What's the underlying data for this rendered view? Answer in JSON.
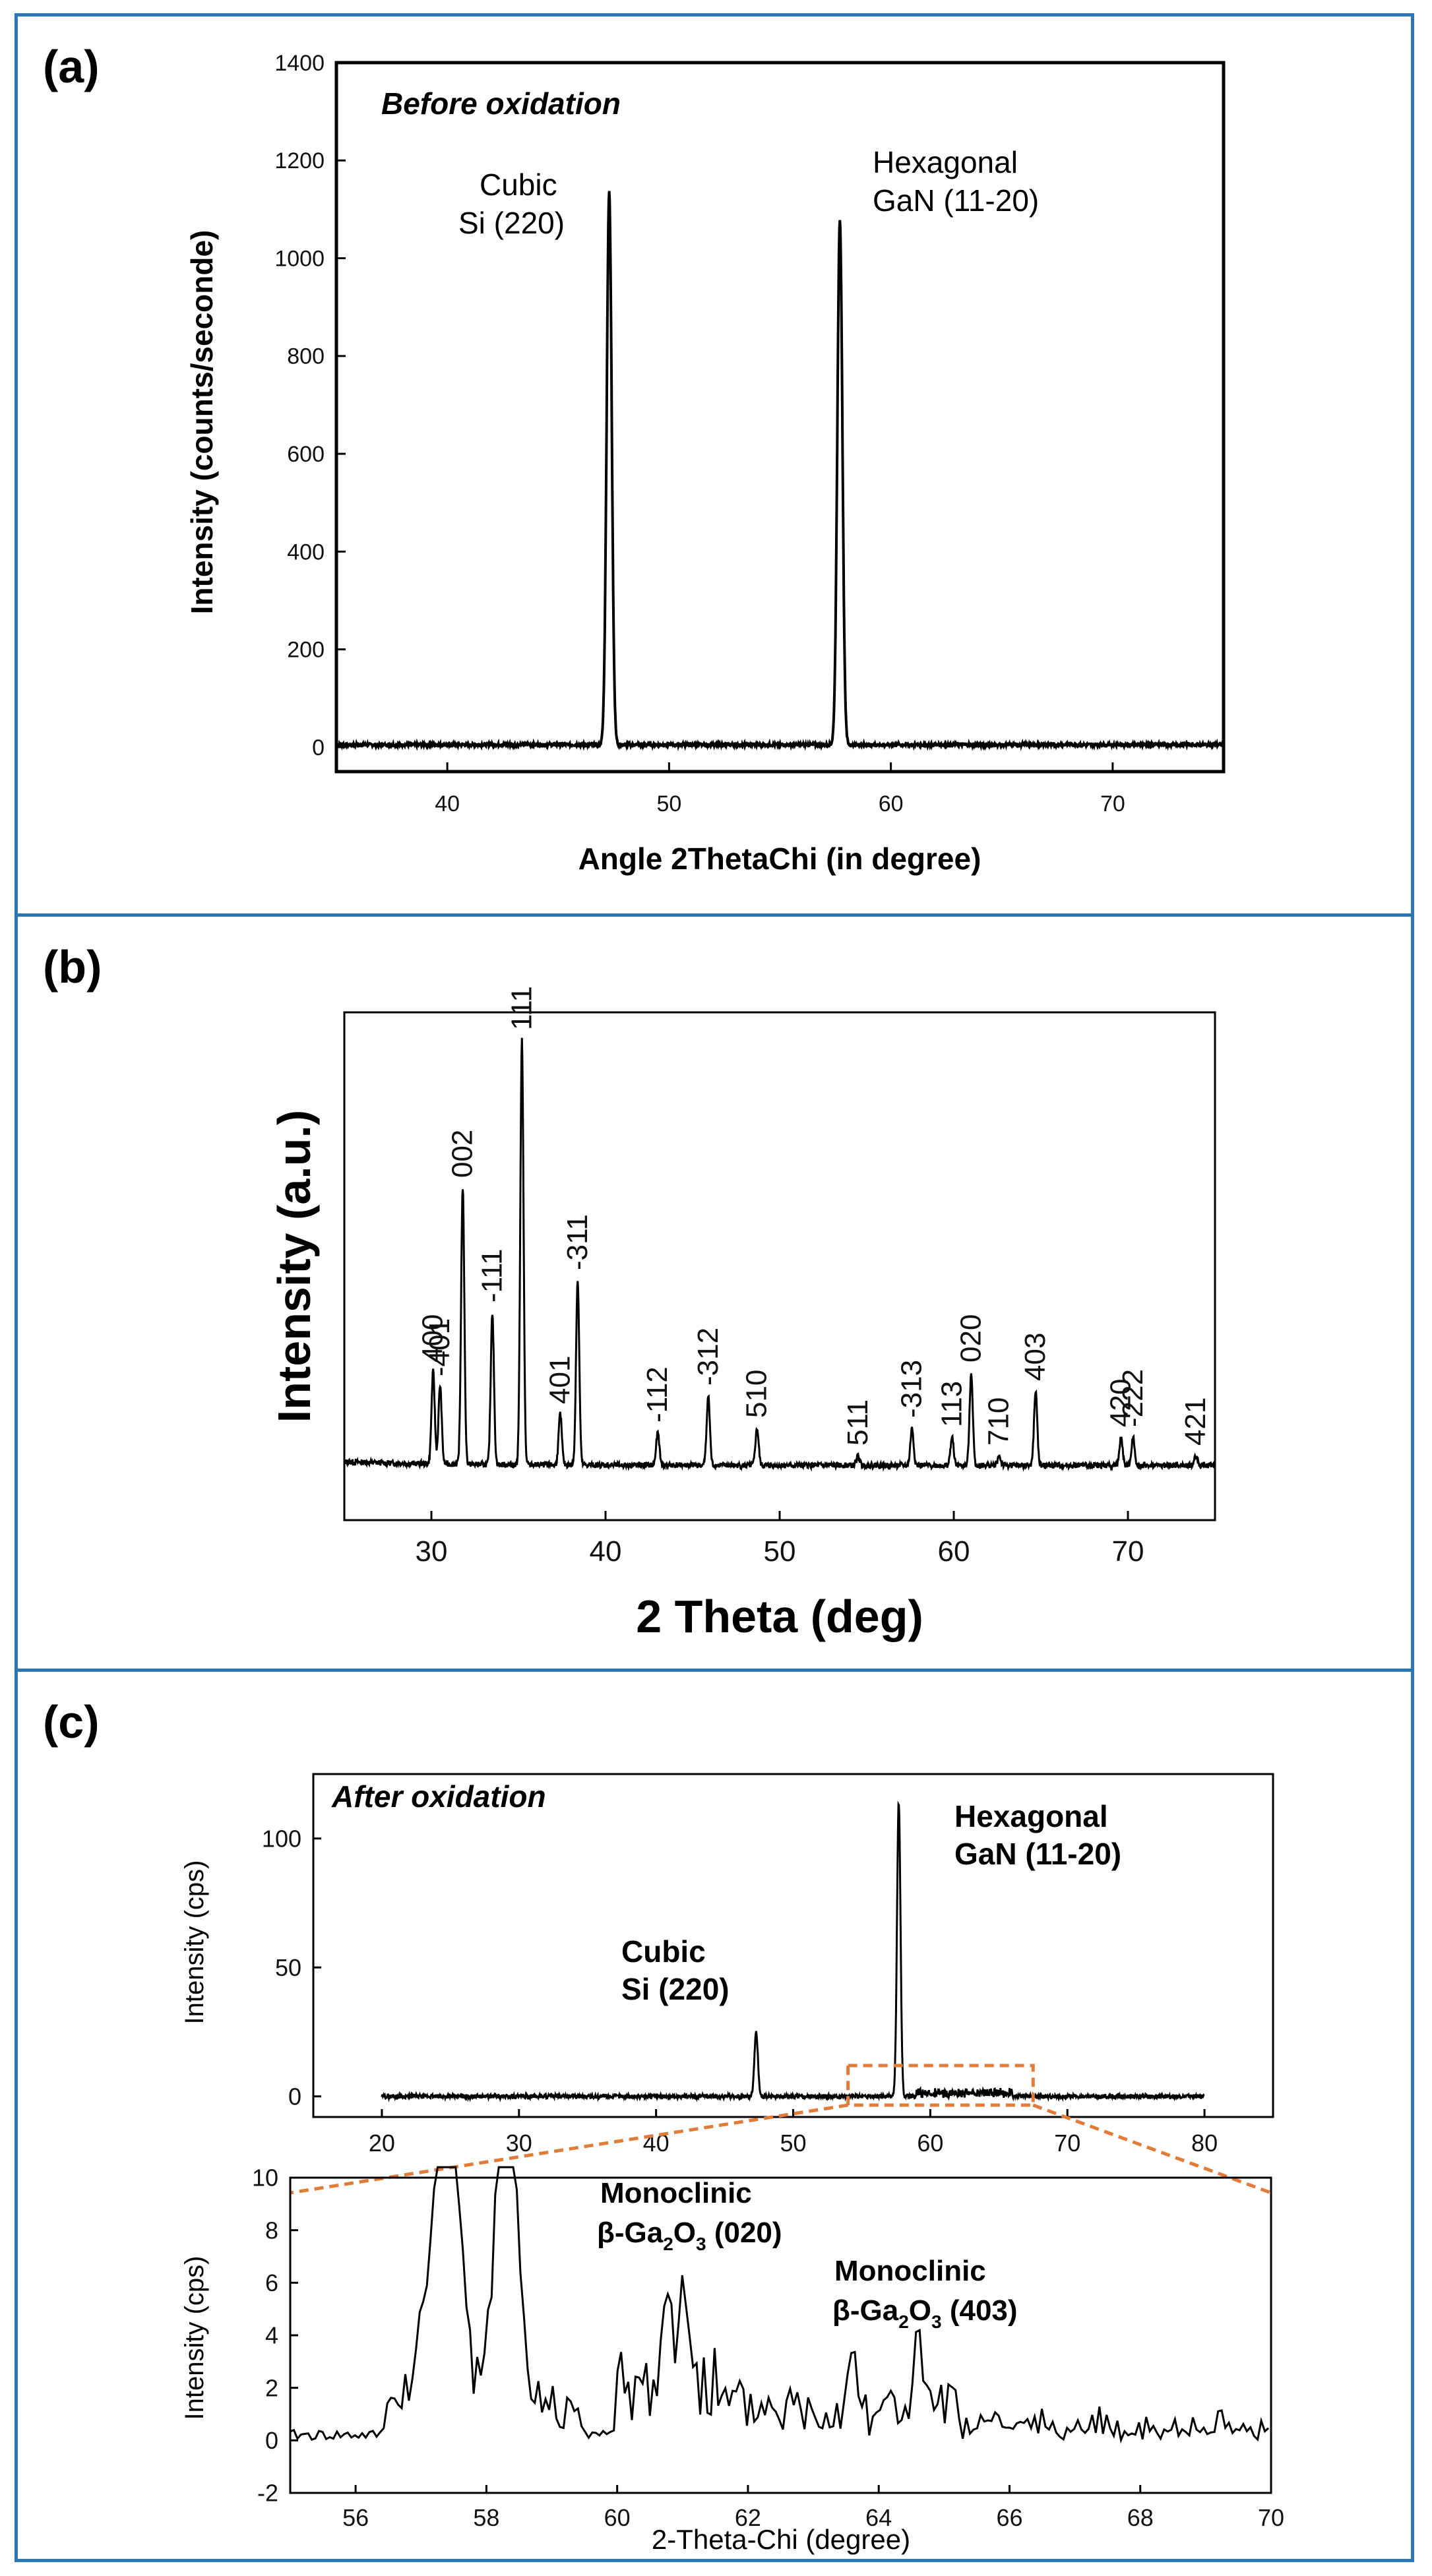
{
  "colors": {
    "frame": "#2e75b6",
    "trace": "#000000",
    "zoom_box": "#e07b39"
  },
  "panels": {
    "a": {
      "label": "(a)"
    },
    "b": {
      "label": "(b)"
    },
    "c": {
      "label": "(c)"
    }
  },
  "chart_data": [
    {
      "id": "a",
      "type": "line",
      "annotation": "Before oxidation",
      "xlabel": "Angle 2ThetaChi (in degree)",
      "ylabel": "Intensity (counts/seconde)",
      "xlim": [
        35,
        75
      ],
      "ylim": [
        -50,
        1400
      ],
      "xticks": [
        40,
        50,
        60,
        70
      ],
      "yticks": [
        0,
        200,
        400,
        600,
        800,
        1000,
        1200,
        1400
      ],
      "peaks": [
        {
          "name": "Cubic",
          "detail": "Si (220)",
          "x": 47.3,
          "y": 1130
        },
        {
          "name": "Hexagonal",
          "detail": "GaN (11-20)",
          "x": 57.7,
          "y": 1075
        }
      ],
      "baseline": 5
    },
    {
      "id": "b",
      "type": "line",
      "xlabel": "2 Theta (deg)",
      "ylabel": "Intensity (a.u.)",
      "xlim": [
        25,
        75
      ],
      "xticks": [
        30,
        40,
        50,
        60,
        70
      ],
      "peaks": [
        {
          "label": "400",
          "x": 30.1,
          "h": 0.2
        },
        {
          "label": "-401",
          "x": 30.5,
          "h": 0.17
        },
        {
          "label": "002",
          "x": 31.8,
          "h": 0.6
        },
        {
          "label": "-111",
          "x": 33.5,
          "h": 0.33
        },
        {
          "label": "111",
          "x": 35.2,
          "h": 0.92
        },
        {
          "label": "401",
          "x": 37.4,
          "h": 0.11
        },
        {
          "label": "-311",
          "x": 38.4,
          "h": 0.4
        },
        {
          "label": "-112",
          "x": 43.0,
          "h": 0.07
        },
        {
          "label": "-312",
          "x": 45.9,
          "h": 0.15
        },
        {
          "label": "510",
          "x": 48.7,
          "h": 0.08
        },
        {
          "label": "511",
          "x": 54.5,
          "h": 0.02
        },
        {
          "label": "-313",
          "x": 57.6,
          "h": 0.08
        },
        {
          "label": "113",
          "x": 59.9,
          "h": 0.06
        },
        {
          "label": "020",
          "x": 61.0,
          "h": 0.2
        },
        {
          "label": "710",
          "x": 62.6,
          "h": 0.02
        },
        {
          "label": "403",
          "x": 64.7,
          "h": 0.16
        },
        {
          "label": "420",
          "x": 69.6,
          "h": 0.06
        },
        {
          "label": "-222",
          "x": 70.3,
          "h": 0.06
        },
        {
          "label": "421",
          "x": 73.9,
          "h": 0.02
        }
      ]
    },
    {
      "id": "c-main",
      "type": "line",
      "annotation": "After oxidation",
      "ylabel": "Intensity (cps)",
      "xlim": [
        15,
        85
      ],
      "ylim": [
        -8,
        125
      ],
      "xticks": [
        20,
        30,
        40,
        50,
        60,
        70,
        80
      ],
      "yticks": [
        0,
        50,
        100
      ],
      "peaks": [
        {
          "name": "Cubic",
          "detail": "Si (220)",
          "x": 47.3,
          "y": 25
        },
        {
          "name": "Hexagonal",
          "detail": "GaN (11-20)",
          "x": 57.7,
          "y": 114
        }
      ],
      "zoom_range_x": [
        54,
        67.5
      ]
    },
    {
      "id": "c-inset",
      "type": "line",
      "xlabel": "2-Theta-Chi (degree)",
      "ylabel": "Intensity (cps)",
      "xlim": [
        55,
        70
      ],
      "ylim": [
        -2,
        10
      ],
      "xticks": [
        56,
        58,
        60,
        62,
        64,
        66,
        68,
        70
      ],
      "yticks": [
        -2,
        0,
        2,
        4,
        6,
        8,
        10
      ],
      "annotations": [
        {
          "name": "Monoclinic",
          "detail_prefix": "β-Ga",
          "sub1": "2",
          "mid": "O",
          "sub2": "3",
          "suffix": " (020)",
          "x": 61.0,
          "y": 7.0
        },
        {
          "name": "Monoclinic",
          "detail_prefix": "β-Ga",
          "sub1": "2",
          "mid": "O",
          "sub2": "3",
          "suffix": " (403)",
          "x": 64.7,
          "y": 4.6
        }
      ]
    }
  ]
}
